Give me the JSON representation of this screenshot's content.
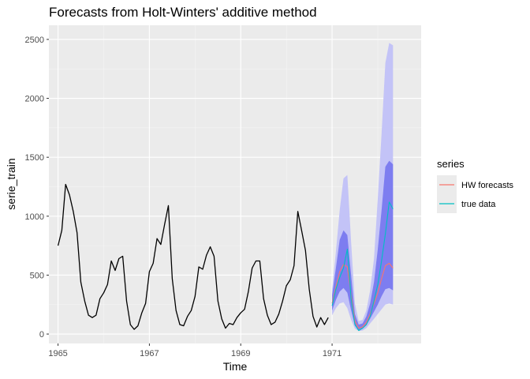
{
  "chart_data": {
    "type": "line",
    "title": "Forecasts from Holt-Winters' additive method",
    "xlabel": "Time",
    "ylabel": "serie_train",
    "xlim": [
      1964.8,
      1972.95
    ],
    "ylim": [
      -80,
      2620
    ],
    "x_ticks": [
      {
        "value": 1965,
        "label": "1965"
      },
      {
        "value": 1967,
        "label": "1967"
      },
      {
        "value": 1969,
        "label": "1969"
      },
      {
        "value": 1971,
        "label": "1971"
      }
    ],
    "y_ticks": [
      {
        "value": 0,
        "label": "0"
      },
      {
        "value": 500,
        "label": "500"
      },
      {
        "value": 1000,
        "label": "1000"
      },
      {
        "value": 1500,
        "label": "1500"
      },
      {
        "value": 2000,
        "label": "2000"
      },
      {
        "value": 2500,
        "label": "2500"
      }
    ],
    "grid": true,
    "legend": {
      "title": "series",
      "position": "right",
      "entries": [
        {
          "label": "HW forecasts",
          "color": "#f8766d"
        },
        {
          "label": "true data",
          "color": "#00bfc4"
        }
      ]
    },
    "colors": {
      "panel": "#ebebeb",
      "grid_major": "#ffffff",
      "grid_minor": "#f5f5f5",
      "history": "#000000",
      "band80": "#7d7df0",
      "band95": "#c3c3f7"
    },
    "series": [
      {
        "role": "history",
        "start": 1965.0,
        "step": 0.08333,
        "values": [
          750,
          880,
          1270,
          1180,
          1040,
          860,
          440,
          280,
          160,
          140,
          160,
          300,
          350,
          420,
          620,
          540,
          640,
          660,
          280,
          80,
          40,
          70,
          180,
          260,
          530,
          600,
          810,
          760,
          930,
          1090,
          470,
          200,
          80,
          70,
          150,
          200,
          320,
          570,
          550,
          670,
          740,
          660,
          280,
          130,
          50,
          90,
          80,
          140,
          180,
          210,
          360,
          560,
          620,
          620,
          300,
          160,
          80,
          100,
          170,
          280,
          410,
          460,
          580,
          1040,
          880,
          710,
          380,
          150,
          60,
          140,
          80,
          140
        ]
      },
      {
        "name": "true data",
        "start": 1971.0,
        "step": 0.08333,
        "values": [
          240,
          380,
          480,
          560,
          720,
          300,
          80,
          30,
          50,
          80,
          150,
          280,
          420,
          620,
          850,
          1120,
          1060
        ]
      },
      {
        "name": "HW forecasts",
        "start": 1971.0,
        "step": 0.08333,
        "values": [
          260,
          400,
          530,
          590,
          570,
          330,
          110,
          50,
          60,
          100,
          170,
          260,
          350,
          470,
          580,
          600,
          560
        ]
      }
    ],
    "intervals": {
      "start": 1971.0,
      "step": 0.08333,
      "lo95": [
        160,
        220,
        260,
        270,
        220,
        120,
        45,
        25,
        30,
        50,
        90,
        130,
        170,
        210,
        250,
        260,
        250
      ],
      "lo80": [
        200,
        290,
        360,
        390,
        350,
        200,
        70,
        35,
        45,
        75,
        130,
        190,
        250,
        320,
        380,
        390,
        370
      ],
      "hi80": [
        330,
        560,
        800,
        880,
        840,
        500,
        170,
        80,
        90,
        150,
        260,
        440,
        720,
        1050,
        1420,
        1470,
        1440
      ],
      "hi95": [
        380,
        700,
        1050,
        1320,
        1350,
        780,
        260,
        110,
        120,
        200,
        370,
        640,
        1150,
        1700,
        2300,
        2470,
        2450
      ]
    }
  }
}
